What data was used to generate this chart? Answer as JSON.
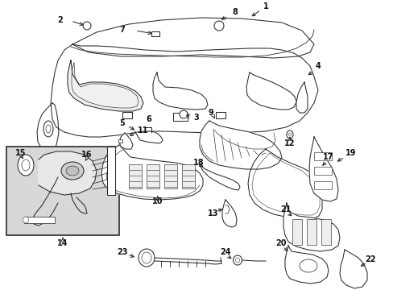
{
  "bg_color": "#ffffff",
  "line_color": "#2a2a2a",
  "label_color": "#111111",
  "box_bg": "#d8d8d8",
  "figsize": [
    4.89,
    3.6
  ],
  "dpi": 100,
  "lw": 0.75,
  "fs": 7.0
}
